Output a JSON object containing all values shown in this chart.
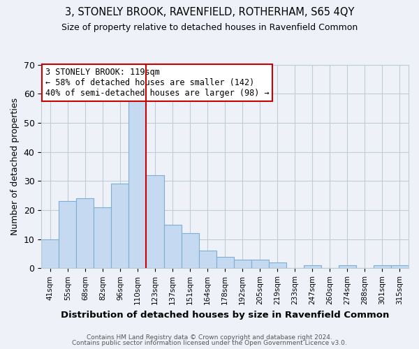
{
  "title1": "3, STONELY BROOK, RAVENFIELD, ROTHERHAM, S65 4QY",
  "title2": "Size of property relative to detached houses in Ravenfield Common",
  "xlabel": "Distribution of detached houses by size in Ravenfield Common",
  "ylabel": "Number of detached properties",
  "footer1": "Contains HM Land Registry data © Crown copyright and database right 2024.",
  "footer2": "Contains public sector information licensed under the Open Government Licence v3.0.",
  "bar_labels": [
    "41sqm",
    "55sqm",
    "68sqm",
    "82sqm",
    "96sqm",
    "110sqm",
    "123sqm",
    "137sqm",
    "151sqm",
    "164sqm",
    "178sqm",
    "192sqm",
    "205sqm",
    "219sqm",
    "233sqm",
    "247sqm",
    "260sqm",
    "274sqm",
    "288sqm",
    "301sqm",
    "315sqm"
  ],
  "bar_values": [
    10,
    23,
    24,
    21,
    29,
    58,
    32,
    15,
    12,
    6,
    4,
    3,
    3,
    2,
    0,
    1,
    0,
    1,
    0,
    1,
    1
  ],
  "bar_color": "#c5d9f0",
  "bar_edge_color": "#7bafd4",
  "vline_x": 5.5,
  "vline_color": "#cc0000",
  "ylim": [
    0,
    70
  ],
  "yticks": [
    0,
    10,
    20,
    30,
    40,
    50,
    60,
    70
  ],
  "annotation_title": "3 STONELY BROOK: 119sqm",
  "annotation_line1": "← 58% of detached houses are smaller (142)",
  "annotation_line2": "40% of semi-detached houses are larger (98) →",
  "annotation_box_color": "#ffffff",
  "annotation_box_edge": "#cc0000",
  "grid_color": "#c0ccd8",
  "bg_color": "#eef2f8"
}
